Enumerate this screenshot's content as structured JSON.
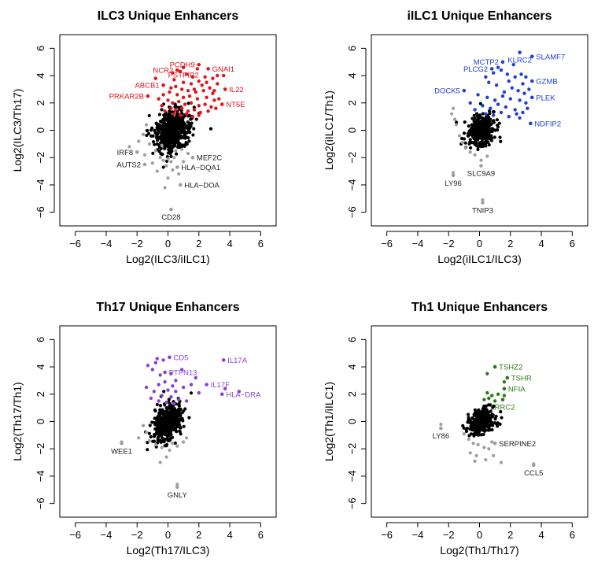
{
  "colors": {
    "background_points": "#000000",
    "outlier_points": "#9e9e9e",
    "ilc3": "#e3141b",
    "ilc1": "#1f3fd6",
    "th17": "#8a3fd9",
    "th1": "#2e7a14"
  },
  "chart_data": [
    {
      "type": "scatter",
      "title": "ILC3 Unique Enhancers",
      "xlabel": "Log2(ILC3/iILC1)",
      "ylabel": "Log2(ILC3/Th17)",
      "xlim": [
        -7,
        7
      ],
      "ylim": [
        -7,
        7
      ],
      "xticks": [
        -6,
        -4,
        -2,
        0,
        2,
        4,
        6
      ],
      "yticks": [
        -6,
        -4,
        -2,
        0,
        2,
        4,
        6
      ],
      "tick_labels": [
        "−6",
        "−4",
        "−2",
        "0",
        "2",
        "4",
        "6"
      ],
      "highlight_color": "#e3141b",
      "cloud": {
        "cx": 0.2,
        "cy": 0.0,
        "sx": 0.55,
        "sy": 0.75,
        "n": 560
      },
      "labeled": [
        {
          "label": "PCDH9",
          "x": 2.0,
          "y": 4.8,
          "color": "highlight",
          "anchor": "end"
        },
        {
          "label": "GNAI1",
          "x": 2.6,
          "y": 4.5,
          "color": "highlight",
          "anchor": "start"
        },
        {
          "label": "PSTPIP2",
          "x": 1.0,
          "y": 4.6,
          "color": "highlight",
          "anchor": "middle"
        },
        {
          "label": "NCR2",
          "x": 0.6,
          "y": 4.4,
          "color": "highlight",
          "anchor": "end"
        },
        {
          "label": "ABCB1",
          "x": -0.3,
          "y": 3.3,
          "color": "highlight",
          "anchor": "end"
        },
        {
          "label": "IL22",
          "x": 3.7,
          "y": 3.0,
          "color": "highlight",
          "anchor": "start"
        },
        {
          "label": "PRKAR2B",
          "x": -1.3,
          "y": 2.5,
          "color": "highlight",
          "anchor": "end"
        },
        {
          "label": "NT5E",
          "x": 3.5,
          "y": 1.9,
          "color": "highlight",
          "anchor": "start"
        },
        {
          "label": "IRF8",
          "x": -2.0,
          "y": -1.6,
          "color": "outlier",
          "anchor": "end"
        },
        {
          "label": "MEF2C",
          "x": 1.6,
          "y": -2.0,
          "color": "outlier",
          "anchor": "start"
        },
        {
          "label": "AUTS2",
          "x": -1.5,
          "y": -2.5,
          "color": "outlier",
          "anchor": "end"
        },
        {
          "label": "HLA−DQA1",
          "x": 0.6,
          "y": -2.7,
          "color": "outlier",
          "anchor": "start"
        },
        {
          "label": "HLA−DOA",
          "x": 0.8,
          "y": -4.0,
          "color": "outlier",
          "anchor": "start"
        },
        {
          "label": "CD28",
          "x": 0.2,
          "y": -5.8,
          "color": "outlier",
          "anchor": "middle"
        }
      ],
      "highlighted_points": [
        [
          0.3,
          4.2
        ],
        [
          0.8,
          4.3
        ],
        [
          1.2,
          4.1
        ],
        [
          1.6,
          3.9
        ],
        [
          2.0,
          3.6
        ],
        [
          2.4,
          3.9
        ],
        [
          2.9,
          3.8
        ],
        [
          3.2,
          4.0
        ],
        [
          3.6,
          4.0
        ],
        [
          0.4,
          3.7
        ],
        [
          1.0,
          3.5
        ],
        [
          1.5,
          3.4
        ],
        [
          2.2,
          3.3
        ],
        [
          2.7,
          3.1
        ],
        [
          3.2,
          3.4
        ],
        [
          0.5,
          3.2
        ],
        [
          0.9,
          3.0
        ],
        [
          1.3,
          2.9
        ],
        [
          1.8,
          2.8
        ],
        [
          2.3,
          2.9
        ],
        [
          2.9,
          2.7
        ],
        [
          0.1,
          2.8
        ],
        [
          0.6,
          2.6
        ],
        [
          1.0,
          2.4
        ],
        [
          1.4,
          2.5
        ],
        [
          1.9,
          2.3
        ],
        [
          2.5,
          2.4
        ],
        [
          3.0,
          2.2
        ],
        [
          3.3,
          2.3
        ],
        [
          0.0,
          2.2
        ],
        [
          0.3,
          2.0
        ],
        [
          0.7,
          2.1
        ],
        [
          1.1,
          1.9
        ],
        [
          1.5,
          2.0
        ],
        [
          2.0,
          1.8
        ],
        [
          2.4,
          1.9
        ],
        [
          2.8,
          1.7
        ],
        [
          0.2,
          1.6
        ],
        [
          0.5,
          1.5
        ],
        [
          0.9,
          1.6
        ],
        [
          1.3,
          1.4
        ],
        [
          1.7,
          1.5
        ],
        [
          2.1,
          1.3
        ],
        [
          2.6,
          1.4
        ],
        [
          3.1,
          1.6
        ],
        [
          0.4,
          1.2
        ],
        [
          0.8,
          1.1
        ],
        [
          1.2,
          1.2
        ],
        [
          1.6,
          1.0
        ],
        [
          2.0,
          1.1
        ],
        [
          -0.4,
          1.8
        ],
        [
          -0.6,
          2.3
        ],
        [
          -0.2,
          1.4
        ],
        [
          -0.8,
          3.8
        ],
        [
          1.9,
          4.5
        ],
        [
          2.5,
          3.5
        ],
        [
          1.7,
          3.0
        ],
        [
          0.2,
          3.1
        ],
        [
          -0.3,
          2.6
        ],
        [
          3.0,
          2.9
        ]
      ],
      "outlier_points": [
        [
          -1.6,
          -0.3
        ],
        [
          -1.4,
          0.4
        ],
        [
          -1.9,
          -0.8
        ],
        [
          -1.2,
          -1.0
        ],
        [
          -0.8,
          -1.5
        ],
        [
          -0.5,
          -2.0
        ],
        [
          -0.3,
          -2.2
        ],
        [
          0.0,
          -2.1
        ],
        [
          0.2,
          -2.3
        ],
        [
          0.4,
          -2.0
        ],
        [
          -0.1,
          -2.6
        ],
        [
          0.3,
          -2.9
        ],
        [
          0.7,
          -3.2
        ],
        [
          0.0,
          -3.5
        ],
        [
          -0.2,
          -4.2
        ],
        [
          1.0,
          -2.3
        ],
        [
          1.3,
          -1.7
        ],
        [
          -1.0,
          -2.4
        ],
        [
          -0.7,
          -3.0
        ],
        [
          0.9,
          -1.4
        ],
        [
          -2.5,
          -1.2
        ],
        [
          -1.5,
          -1.8
        ],
        [
          0.5,
          -1.5
        ],
        [
          -0.4,
          -1.1
        ]
      ]
    },
    {
      "type": "scatter",
      "title": "iILC1 Unique Enhancers",
      "xlabel": "Log2(iILC1/ILC3)",
      "ylabel": "Log2(iILC1/Th1)",
      "xlim": [
        -7,
        7
      ],
      "ylim": [
        -7,
        7
      ],
      "xticks": [
        -6,
        -4,
        -2,
        0,
        2,
        4,
        6
      ],
      "yticks": [
        -6,
        -4,
        -2,
        0,
        2,
        4,
        6
      ],
      "tick_labels": [
        "−6",
        "−4",
        "−2",
        "0",
        "2",
        "4",
        "6"
      ],
      "highlight_color": "#1f3fd6",
      "cloud": {
        "cx": 0.1,
        "cy": 0.0,
        "sx": 0.45,
        "sy": 0.6,
        "n": 330
      },
      "labeled": [
        {
          "label": "KLRC2",
          "x": 2.6,
          "y": 5.7,
          "color": "highlight",
          "anchor": "middle"
        },
        {
          "label": "SLAMF7",
          "x": 3.4,
          "y": 5.4,
          "color": "highlight",
          "anchor": "start"
        },
        {
          "label": "MCTP2",
          "x": 1.5,
          "y": 5.0,
          "color": "highlight",
          "anchor": "end"
        },
        {
          "label": "PLCG2",
          "x": 0.8,
          "y": 4.5,
          "color": "highlight",
          "anchor": "end"
        },
        {
          "label": "GZMB",
          "x": 3.4,
          "y": 3.6,
          "color": "highlight",
          "anchor": "start"
        },
        {
          "label": "DOCK5",
          "x": -1.0,
          "y": 2.9,
          "color": "highlight",
          "anchor": "end"
        },
        {
          "label": "PLEK",
          "x": 3.4,
          "y": 2.4,
          "color": "highlight",
          "anchor": "start"
        },
        {
          "label": "NDFIP2",
          "x": 3.3,
          "y": 0.5,
          "color": "highlight",
          "anchor": "start"
        },
        {
          "label": "SLC9A9",
          "x": 0.1,
          "y": -2.6,
          "color": "outlier",
          "anchor": "middle"
        },
        {
          "label": "LY96",
          "x": -1.7,
          "y": -3.3,
          "color": "outlier",
          "anchor": "middle"
        },
        {
          "label": "TNIP3",
          "x": 0.2,
          "y": -5.3,
          "color": "outlier",
          "anchor": "middle"
        }
      ],
      "highlighted_points": [
        [
          0.4,
          3.9
        ],
        [
          0.9,
          4.2
        ],
        [
          1.4,
          4.4
        ],
        [
          1.9,
          3.6
        ],
        [
          2.3,
          3.9
        ],
        [
          2.7,
          4.1
        ],
        [
          3.0,
          3.9
        ],
        [
          2.1,
          3.1
        ],
        [
          1.6,
          2.8
        ],
        [
          2.5,
          2.9
        ],
        [
          2.9,
          2.7
        ],
        [
          0.5,
          2.4
        ],
        [
          1.0,
          2.2
        ],
        [
          1.5,
          2.5
        ],
        [
          2.0,
          2.3
        ],
        [
          2.6,
          2.2
        ],
        [
          3.0,
          2.0
        ],
        [
          0.2,
          1.8
        ],
        [
          0.7,
          1.6
        ],
        [
          1.2,
          1.9
        ],
        [
          1.7,
          1.7
        ],
        [
          2.3,
          1.5
        ],
        [
          2.8,
          1.3
        ],
        [
          3.1,
          1.6
        ],
        [
          0.4,
          1.2
        ],
        [
          0.9,
          1.1
        ],
        [
          1.4,
          1.3
        ],
        [
          1.9,
          1.0
        ],
        [
          2.4,
          1.2
        ],
        [
          2.6,
          0.9
        ],
        [
          -0.3,
          1.5
        ],
        [
          -0.6,
          2.0
        ],
        [
          1.1,
          3.3
        ],
        [
          1.8,
          4.1
        ],
        [
          2.2,
          4.8
        ],
        [
          1.2,
          4.6
        ],
        [
          0.6,
          3.5
        ],
        [
          2.8,
          3.4
        ],
        [
          3.2,
          3.0
        ],
        [
          -0.1,
          2.6
        ]
      ],
      "outlier_points": [
        [
          -1.7,
          1.6
        ],
        [
          -1.8,
          1.2
        ],
        [
          -1.6,
          0.8
        ],
        [
          -1.5,
          0.4
        ],
        [
          -1.3,
          -0.4
        ],
        [
          -1.1,
          -0.9
        ],
        [
          -0.9,
          -1.3
        ],
        [
          -0.6,
          -1.6
        ],
        [
          -0.3,
          -1.8
        ],
        [
          0.1,
          -2.2
        ],
        [
          0.5,
          -1.9
        ],
        [
          -1.7,
          -3.1
        ],
        [
          0.2,
          -5.1
        ]
      ]
    },
    {
      "type": "scatter",
      "title": "Th17 Unique Enhancers",
      "xlabel": "Log2(Th17/ILC3)",
      "ylabel": "Log2(Th17/Th1)",
      "xlim": [
        -7,
        7
      ],
      "ylim": [
        -7,
        7
      ],
      "xticks": [
        -6,
        -4,
        -2,
        0,
        2,
        4,
        6
      ],
      "yticks": [
        -6,
        -4,
        -2,
        0,
        2,
        4,
        6
      ],
      "tick_labels": [
        "−6",
        "−4",
        "−2",
        "0",
        "2",
        "4",
        "6"
      ],
      "highlight_color": "#8a3fd9",
      "cloud": {
        "cx": 0.0,
        "cy": 0.0,
        "sx": 0.45,
        "sy": 0.65,
        "n": 420
      },
      "labeled": [
        {
          "label": "CD5",
          "x": 0.1,
          "y": 4.7,
          "color": "highlight",
          "anchor": "start"
        },
        {
          "label": "IL17A",
          "x": 3.6,
          "y": 4.5,
          "color": "highlight",
          "anchor": "start"
        },
        {
          "label": "PTPN13",
          "x": -0.2,
          "y": 3.6,
          "color": "highlight",
          "anchor": "start"
        },
        {
          "label": "IL17F",
          "x": 2.5,
          "y": 2.7,
          "color": "highlight",
          "anchor": "start"
        },
        {
          "label": "HLA−DRA",
          "x": 3.5,
          "y": 2.0,
          "color": "highlight",
          "anchor": "start"
        },
        {
          "label": "WEE1",
          "x": -3.0,
          "y": -1.6,
          "color": "outlier",
          "anchor": "middle"
        },
        {
          "label": "GNLY",
          "x": 0.6,
          "y": -4.8,
          "color": "outlier",
          "anchor": "middle"
        }
      ],
      "highlighted_points": [
        [
          -1.3,
          4.1
        ],
        [
          -0.8,
          4.3
        ],
        [
          -0.3,
          4.5
        ],
        [
          -1.0,
          3.8
        ],
        [
          -0.5,
          3.4
        ],
        [
          0.2,
          3.5
        ],
        [
          0.5,
          3.0
        ],
        [
          -0.2,
          2.9
        ],
        [
          0.3,
          2.6
        ],
        [
          -0.6,
          2.7
        ],
        [
          0.0,
          2.3
        ],
        [
          0.5,
          2.2
        ],
        [
          1.0,
          2.5
        ],
        [
          1.5,
          2.7
        ],
        [
          2.0,
          2.1
        ],
        [
          -0.9,
          2.2
        ],
        [
          -1.4,
          2.5
        ],
        [
          -0.4,
          1.9
        ],
        [
          0.2,
          1.8
        ],
        [
          0.7,
          1.6
        ],
        [
          -0.1,
          1.4
        ],
        [
          -0.6,
          1.5
        ],
        [
          1.2,
          1.5
        ],
        [
          0.4,
          1.3
        ],
        [
          -1.1,
          1.7
        ],
        [
          4.6,
          2.2
        ],
        [
          3.7,
          2.4
        ],
        [
          1.8,
          3.2
        ],
        [
          0.9,
          3.8
        ],
        [
          -0.7,
          4.6
        ]
      ],
      "outlier_points": [
        [
          -1.6,
          -0.3
        ],
        [
          -1.4,
          -0.8
        ],
        [
          -1.2,
          -1.4
        ],
        [
          -0.8,
          -1.7
        ],
        [
          -0.4,
          -1.9
        ],
        [
          0.1,
          -2.1
        ],
        [
          0.6,
          -1.8
        ],
        [
          1.0,
          -1.5
        ],
        [
          -1.9,
          -1.2
        ],
        [
          -0.1,
          -2.6
        ],
        [
          -0.5,
          -3.0
        ],
        [
          1.2,
          -1.2
        ],
        [
          0.3,
          -1.6
        ],
        [
          -3.0,
          -1.5
        ],
        [
          0.6,
          -4.6
        ]
      ]
    },
    {
      "type": "scatter",
      "title": "Th1 Unique Enhancers",
      "xlabel": "Log2(Th1/Th17)",
      "ylabel": "Log2(Th1/iILC1)",
      "xlim": [
        -7,
        7
      ],
      "ylim": [
        -7,
        7
      ],
      "xticks": [
        -6,
        -4,
        -2,
        0,
        2,
        4,
        6
      ],
      "yticks": [
        -6,
        -4,
        -2,
        0,
        2,
        4,
        6
      ],
      "tick_labels": [
        "−6",
        "−4",
        "−2",
        "0",
        "2",
        "4",
        "6"
      ],
      "highlight_color": "#2e7a14",
      "cloud": {
        "cx": 0.2,
        "cy": 0.0,
        "sx": 0.45,
        "sy": 0.5,
        "n": 270
      },
      "labeled": [
        {
          "label": "TSHZ2",
          "x": 1.0,
          "y": 4.0,
          "color": "highlight",
          "anchor": "start"
        },
        {
          "label": "TSHR",
          "x": 1.8,
          "y": 3.2,
          "color": "highlight",
          "anchor": "start"
        },
        {
          "label": "NFIA",
          "x": 1.6,
          "y": 2.4,
          "color": "highlight",
          "anchor": "start"
        },
        {
          "label": "LRRC2",
          "x": 1.5,
          "y": 1.6,
          "color": "highlight",
          "anchor": "middle"
        },
        {
          "label": "LY86",
          "x": -2.5,
          "y": -0.5,
          "color": "outlier",
          "anchor": "middle"
        },
        {
          "label": "SERPINE2",
          "x": 1.0,
          "y": -1.6,
          "color": "outlier",
          "anchor": "start"
        },
        {
          "label": "CCL5",
          "x": 3.5,
          "y": -3.2,
          "color": "outlier",
          "anchor": "middle"
        }
      ],
      "highlighted_points": [
        [
          0.5,
          3.5
        ],
        [
          1.6,
          2.9
        ],
        [
          1.2,
          2.0
        ],
        [
          0.5,
          2.1
        ],
        [
          0.8,
          1.9
        ],
        [
          0.6,
          1.7
        ],
        [
          1.6,
          1.9
        ],
        [
          0.3,
          1.6
        ],
        [
          1.0,
          1.5
        ]
      ],
      "outlier_points": [
        [
          -1.0,
          -0.9
        ],
        [
          -0.7,
          -1.3
        ],
        [
          -0.4,
          -1.6
        ],
        [
          -0.1,
          -1.7
        ],
        [
          0.3,
          -1.9
        ],
        [
          0.6,
          -2.0
        ],
        [
          0.8,
          -1.5
        ],
        [
          -0.6,
          -2.3
        ],
        [
          -0.2,
          -2.5
        ],
        [
          0.4,
          -2.8
        ],
        [
          0.9,
          -2.5
        ],
        [
          1.4,
          -3.0
        ],
        [
          -2.5,
          -0.2
        ],
        [
          3.5,
          -3.1
        ],
        [
          -0.3,
          -2.9
        ]
      ]
    }
  ]
}
